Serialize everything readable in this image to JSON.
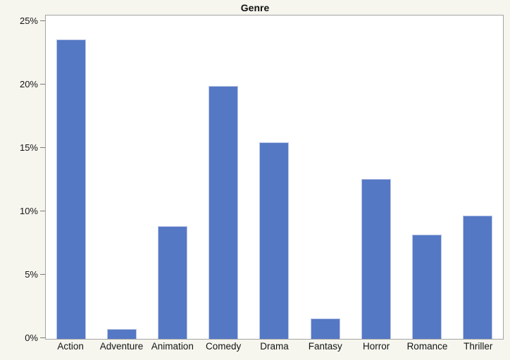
{
  "chart_data": {
    "type": "bar",
    "title": "Genre",
    "categories": [
      "Action",
      "Adventure",
      "Animation",
      "Comedy",
      "Drama",
      "Fantasy",
      "Horror",
      "Romance",
      "Thriller"
    ],
    "values": [
      23.6,
      0.8,
      8.9,
      19.9,
      15.5,
      1.6,
      12.6,
      8.2,
      9.7
    ],
    "unit": "%",
    "xlabel": "",
    "ylabel": "",
    "ylim": [
      0,
      25
    ],
    "ytick_values": [
      0,
      5,
      10,
      15,
      20,
      25
    ],
    "ytick_labels": [
      "0%",
      "5%",
      "10%",
      "15%",
      "20%",
      "25%"
    ],
    "grid": false,
    "legend_position": "none",
    "colors": {
      "bar_fill": "#5578c4",
      "bar_edge": "#bcc7e8",
      "plot_border": "#a3a3a3",
      "plot_background": "#ffffff",
      "page_background": "#f6f6ef",
      "text": "#141414"
    }
  }
}
